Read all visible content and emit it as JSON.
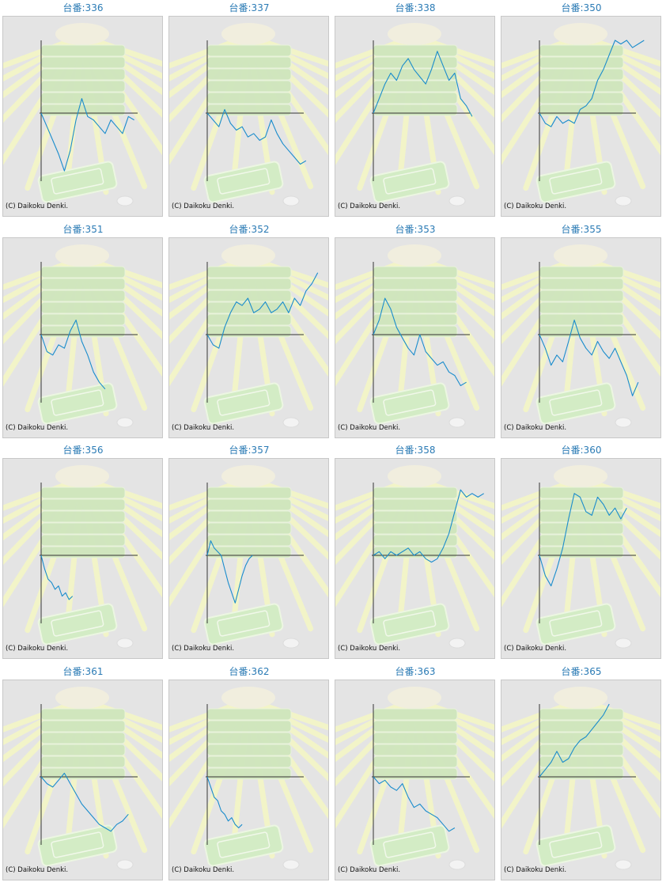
{
  "title_prefix": "台番:",
  "credit_text": "(C) Daikoku Denki.",
  "colors": {
    "line": "#1a8ccc",
    "axis": "#333333",
    "title": "#2b7bb5",
    "panel_bg": "#e4e4e4"
  },
  "chart_data": [
    {
      "type": "line",
      "id": "336",
      "title": "台番:336",
      "xlim": [
        0,
        1
      ],
      "ylim": [
        -1,
        1
      ],
      "x": [
        0,
        0.05,
        0.1,
        0.15,
        0.2,
        0.25,
        0.3,
        0.35,
        0.4,
        0.45,
        0.5,
        0.55,
        0.6,
        0.65,
        0.7,
        0.75,
        0.8
      ],
      "y": [
        0,
        -0.2,
        -0.4,
        -0.6,
        -0.85,
        -0.55,
        -0.1,
        0.2,
        -0.05,
        -0.1,
        -0.2,
        -0.3,
        -0.1,
        -0.2,
        -0.3,
        -0.05,
        -0.1
      ]
    },
    {
      "type": "line",
      "id": "337",
      "title": "台番:337",
      "xlim": [
        0,
        1
      ],
      "ylim": [
        -1,
        1
      ],
      "x": [
        0,
        0.05,
        0.1,
        0.15,
        0.2,
        0.25,
        0.3,
        0.35,
        0.4,
        0.45,
        0.5,
        0.55,
        0.6,
        0.65,
        0.7,
        0.75,
        0.8,
        0.85
      ],
      "y": [
        0,
        -0.1,
        -0.2,
        0.05,
        -0.15,
        -0.25,
        -0.2,
        -0.35,
        -0.3,
        -0.4,
        -0.35,
        -0.1,
        -0.3,
        -0.45,
        -0.55,
        -0.65,
        -0.75,
        -0.7
      ]
    },
    {
      "type": "line",
      "id": "338",
      "title": "台番:338",
      "xlim": [
        0,
        1
      ],
      "ylim": [
        -1,
        1
      ],
      "x": [
        0,
        0.05,
        0.1,
        0.15,
        0.2,
        0.25,
        0.3,
        0.35,
        0.4,
        0.45,
        0.5,
        0.55,
        0.6,
        0.65,
        0.7,
        0.75,
        0.8,
        0.85
      ],
      "y": [
        0,
        0.2,
        0.4,
        0.55,
        0.45,
        0.65,
        0.75,
        0.6,
        0.5,
        0.4,
        0.6,
        0.85,
        0.65,
        0.45,
        0.55,
        0.2,
        0.1,
        -0.05
      ]
    },
    {
      "type": "line",
      "id": "350",
      "title": "台番:350",
      "xlim": [
        0,
        1
      ],
      "ylim": [
        -1,
        1
      ],
      "x": [
        0,
        0.05,
        0.1,
        0.15,
        0.2,
        0.25,
        0.3,
        0.35,
        0.4,
        0.45,
        0.5,
        0.55,
        0.6,
        0.65,
        0.7,
        0.75,
        0.8,
        0.85,
        0.9
      ],
      "y": [
        0,
        -0.15,
        -0.2,
        -0.05,
        -0.15,
        -0.1,
        -0.15,
        0.05,
        0.1,
        0.2,
        0.45,
        0.6,
        0.8,
        1.0,
        0.95,
        1.0,
        0.9,
        0.95,
        1.0
      ]
    },
    {
      "type": "line",
      "id": "351",
      "title": "台番:351",
      "xlim": [
        0,
        1
      ],
      "ylim": [
        -1,
        1
      ],
      "x": [
        0,
        0.05,
        0.1,
        0.15,
        0.2,
        0.25,
        0.3,
        0.35,
        0.4,
        0.45,
        0.5,
        0.55
      ],
      "y": [
        0,
        -0.25,
        -0.3,
        -0.15,
        -0.2,
        0.05,
        0.2,
        -0.1,
        -0.3,
        -0.55,
        -0.7,
        -0.8
      ]
    },
    {
      "type": "line",
      "id": "352",
      "title": "台番:352",
      "xlim": [
        0,
        1
      ],
      "ylim": [
        -1,
        1
      ],
      "x": [
        0,
        0.05,
        0.1,
        0.15,
        0.2,
        0.25,
        0.3,
        0.35,
        0.4,
        0.45,
        0.5,
        0.55,
        0.6,
        0.65,
        0.7,
        0.75,
        0.8,
        0.85,
        0.9,
        0.95
      ],
      "y": [
        0,
        -0.15,
        -0.2,
        0.1,
        0.3,
        0.45,
        0.4,
        0.5,
        0.3,
        0.35,
        0.45,
        0.3,
        0.35,
        0.45,
        0.3,
        0.5,
        0.4,
        0.6,
        0.7,
        0.85
      ]
    },
    {
      "type": "line",
      "id": "353",
      "title": "台番:353",
      "xlim": [
        0,
        1
      ],
      "ylim": [
        -1,
        1
      ],
      "x": [
        0,
        0.05,
        0.1,
        0.15,
        0.2,
        0.25,
        0.3,
        0.35,
        0.4,
        0.45,
        0.5,
        0.55,
        0.6,
        0.65,
        0.7,
        0.75,
        0.8
      ],
      "y": [
        0,
        0.2,
        0.5,
        0.35,
        0.1,
        -0.05,
        -0.2,
        -0.3,
        0,
        -0.25,
        -0.35,
        -0.45,
        -0.4,
        -0.55,
        -0.6,
        -0.75,
        -0.7
      ]
    },
    {
      "type": "line",
      "id": "355",
      "title": "台番:355",
      "xlim": [
        0,
        1
      ],
      "ylim": [
        -1,
        1
      ],
      "x": [
        0,
        0.05,
        0.1,
        0.15,
        0.2,
        0.25,
        0.3,
        0.35,
        0.4,
        0.45,
        0.5,
        0.55,
        0.6,
        0.65,
        0.7,
        0.75,
        0.8,
        0.85
      ],
      "y": [
        0,
        -0.2,
        -0.45,
        -0.3,
        -0.4,
        -0.1,
        0.2,
        -0.05,
        -0.2,
        -0.3,
        -0.1,
        -0.25,
        -0.35,
        -0.2,
        -0.4,
        -0.6,
        -0.9,
        -0.7
      ]
    },
    {
      "type": "line",
      "id": "356",
      "title": "台番:356",
      "xlim": [
        0,
        1
      ],
      "ylim": [
        -1,
        1
      ],
      "x": [
        0,
        0.03,
        0.06,
        0.09,
        0.12,
        0.15,
        0.18,
        0.21,
        0.24,
        0.27
      ],
      "y": [
        0,
        -0.2,
        -0.35,
        -0.4,
        -0.5,
        -0.45,
        -0.6,
        -0.55,
        -0.65,
        -0.6
      ]
    },
    {
      "type": "line",
      "id": "357",
      "title": "台番:357",
      "xlim": [
        0,
        1
      ],
      "ylim": [
        -1,
        1
      ],
      "x": [
        0,
        0.03,
        0.06,
        0.09,
        0.12,
        0.15,
        0.18,
        0.21,
        0.24,
        0.27,
        0.3,
        0.33,
        0.36,
        0.39
      ],
      "y": [
        0,
        0.2,
        0.1,
        0.05,
        0,
        -0.2,
        -0.4,
        -0.55,
        -0.7,
        -0.5,
        -0.3,
        -0.15,
        -0.05,
        0
      ]
    },
    {
      "type": "line",
      "id": "358",
      "title": "台番:358",
      "xlim": [
        0,
        1
      ],
      "ylim": [
        -1,
        1
      ],
      "x": [
        0,
        0.05,
        0.1,
        0.15,
        0.2,
        0.25,
        0.3,
        0.35,
        0.4,
        0.45,
        0.5,
        0.55,
        0.6,
        0.65,
        0.7,
        0.75,
        0.8,
        0.85,
        0.9,
        0.95
      ],
      "y": [
        0,
        0.05,
        -0.05,
        0.05,
        0,
        0.05,
        0.1,
        0,
        0.05,
        -0.05,
        -0.1,
        -0.05,
        0.1,
        0.3,
        0.6,
        0.9,
        0.8,
        0.85,
        0.8,
        0.85
      ]
    },
    {
      "type": "line",
      "id": "360",
      "title": "台番:360",
      "xlim": [
        0,
        1
      ],
      "ylim": [
        -1,
        1
      ],
      "x": [
        0,
        0.05,
        0.1,
        0.15,
        0.2,
        0.25,
        0.3,
        0.35,
        0.4,
        0.45,
        0.5,
        0.55,
        0.6,
        0.65,
        0.7,
        0.75
      ],
      "y": [
        0,
        -0.3,
        -0.45,
        -0.2,
        0.1,
        0.5,
        0.85,
        0.8,
        0.6,
        0.55,
        0.8,
        0.7,
        0.55,
        0.65,
        0.5,
        0.65
      ]
    },
    {
      "type": "line",
      "id": "361",
      "title": "台番:361",
      "xlim": [
        0,
        1
      ],
      "ylim": [
        -1,
        1
      ],
      "x": [
        0,
        0.05,
        0.1,
        0.15,
        0.2,
        0.25,
        0.3,
        0.35,
        0.4,
        0.45,
        0.5,
        0.55,
        0.6,
        0.65,
        0.7,
        0.75
      ],
      "y": [
        0,
        -0.1,
        -0.15,
        -0.05,
        0.05,
        -0.1,
        -0.25,
        -0.4,
        -0.5,
        -0.6,
        -0.7,
        -0.75,
        -0.8,
        -0.7,
        -0.65,
        -0.55
      ]
    },
    {
      "type": "line",
      "id": "362",
      "title": "台番:362",
      "xlim": [
        0,
        1
      ],
      "ylim": [
        -1,
        1
      ],
      "x": [
        0,
        0.03,
        0.06,
        0.09,
        0.12,
        0.15,
        0.18,
        0.21,
        0.24,
        0.27,
        0.3
      ],
      "y": [
        0,
        -0.15,
        -0.3,
        -0.35,
        -0.5,
        -0.55,
        -0.65,
        -0.6,
        -0.7,
        -0.75,
        -0.7
      ]
    },
    {
      "type": "line",
      "id": "363",
      "title": "台番:363",
      "xlim": [
        0,
        1
      ],
      "ylim": [
        -1,
        1
      ],
      "x": [
        0,
        0.05,
        0.1,
        0.15,
        0.2,
        0.25,
        0.3,
        0.35,
        0.4,
        0.45,
        0.5,
        0.55,
        0.6,
        0.65,
        0.7
      ],
      "y": [
        0,
        -0.1,
        -0.05,
        -0.15,
        -0.2,
        -0.1,
        -0.3,
        -0.45,
        -0.4,
        -0.5,
        -0.55,
        -0.6,
        -0.7,
        -0.8,
        -0.75
      ]
    },
    {
      "type": "line",
      "id": "365",
      "title": "台番:365",
      "xlim": [
        0,
        1
      ],
      "ylim": [
        -1,
        1
      ],
      "x": [
        0,
        0.05,
        0.1,
        0.15,
        0.2,
        0.25,
        0.3,
        0.35,
        0.4,
        0.45,
        0.5,
        0.55,
        0.6
      ],
      "y": [
        0,
        0.1,
        0.2,
        0.35,
        0.2,
        0.25,
        0.4,
        0.5,
        0.55,
        0.65,
        0.75,
        0.85,
        1.0
      ]
    }
  ]
}
